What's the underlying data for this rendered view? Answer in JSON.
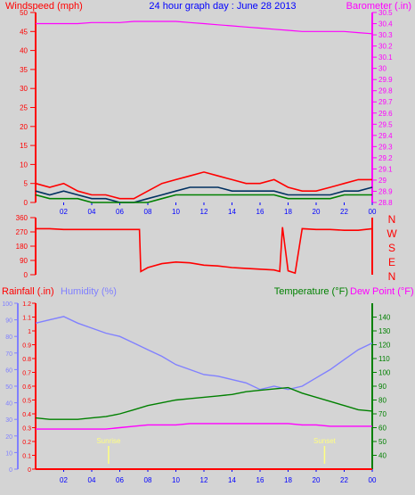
{
  "title": "24 hour graph day : June 28 2013",
  "colors": {
    "bg": "#d4d4d4",
    "wind": "#ff0000",
    "gust_dark": "#003060",
    "avg": "#008000",
    "baro": "#ff00ff",
    "humidity": "#8080ff",
    "temperature": "#008000",
    "dewpoint": "#ff00ff",
    "rain": "#ff0000",
    "sun": "#ffff80"
  },
  "chart_data": [
    {
      "type": "line",
      "panel": "wind-barometer",
      "left_label": "Windspeed (mph)",
      "right_label": "Barometer (.in)",
      "x_ticks": [
        "02",
        "04",
        "06",
        "08",
        "10",
        "12",
        "14",
        "16",
        "18",
        "20",
        "22",
        "00"
      ],
      "y_left": {
        "min": 0,
        "max": 50,
        "ticks": [
          "0",
          "5",
          "10",
          "15",
          "20",
          "25",
          "30",
          "35",
          "40",
          "45",
          "50"
        ]
      },
      "y_right": {
        "min": 28.8,
        "max": 30.5,
        "ticks": [
          "28.8",
          "28.9",
          "29",
          "29.1",
          "29.2",
          "29.3",
          "29.4",
          "29.5",
          "29.6",
          "29.7",
          "29.8",
          "29.9",
          "30",
          "30.1",
          "30.2",
          "30.3",
          "30.4",
          "30.5"
        ]
      },
      "x": [
        0,
        1,
        2,
        3,
        4,
        5,
        6,
        7,
        8,
        9,
        10,
        11,
        12,
        13,
        14,
        15,
        16,
        17,
        18,
        19,
        20,
        21,
        22,
        23,
        24
      ],
      "series": [
        {
          "key": "gust",
          "values": [
            5,
            4,
            5,
            3,
            2,
            2,
            1,
            1,
            3,
            5,
            6,
            7,
            8,
            7,
            6,
            5,
            5,
            6,
            4,
            3,
            3,
            4,
            5,
            6,
            6
          ]
        },
        {
          "key": "wind",
          "values": [
            3,
            2,
            3,
            2,
            1,
            1,
            0,
            0,
            1,
            2,
            3,
            4,
            4,
            4,
            3,
            3,
            3,
            3,
            2,
            2,
            2,
            2,
            3,
            3,
            4
          ]
        },
        {
          "key": "avg",
          "values": [
            2,
            1,
            1,
            1,
            0,
            0,
            0,
            0,
            0,
            1,
            2,
            2,
            2,
            2,
            2,
            2,
            2,
            2,
            1,
            1,
            1,
            1,
            2,
            2,
            2
          ]
        },
        {
          "key": "barometer",
          "values": [
            30.4,
            30.4,
            30.4,
            30.4,
            30.41,
            30.41,
            30.41,
            30.42,
            30.42,
            30.42,
            30.42,
            30.41,
            30.4,
            30.39,
            30.38,
            30.37,
            30.36,
            30.35,
            30.34,
            30.33,
            30.33,
            30.33,
            30.33,
            30.32,
            30.31
          ]
        }
      ]
    },
    {
      "type": "line",
      "panel": "wind-direction",
      "y": {
        "min": 0,
        "max": 360,
        "ticks": [
          "0",
          "90",
          "180",
          "270",
          "360"
        ]
      },
      "compass": [
        "N",
        "W",
        "S",
        "E",
        "N"
      ],
      "x": [
        0,
        1,
        2,
        3,
        4,
        5,
        6,
        7,
        7.4,
        7.5,
        8,
        9,
        10,
        11,
        12,
        13,
        14,
        15,
        16,
        17,
        17.4,
        17.6,
        18,
        18.5,
        19,
        20,
        21,
        22,
        23,
        24
      ],
      "series": [
        {
          "key": "direction",
          "values": [
            290,
            290,
            285,
            285,
            285,
            285,
            285,
            285,
            285,
            20,
            45,
            70,
            80,
            75,
            60,
            55,
            45,
            40,
            35,
            30,
            20,
            300,
            25,
            10,
            290,
            285,
            285,
            280,
            280,
            290
          ]
        }
      ]
    },
    {
      "type": "line",
      "panel": "rain-humidity-temp",
      "left_labels": [
        "Rainfall (.in)",
        "Humidity (%)"
      ],
      "right_labels": [
        "Temperature (°F)",
        "Dew Point (°F)"
      ],
      "x_ticks": [
        "02",
        "04",
        "06",
        "08",
        "10",
        "12",
        "14",
        "16",
        "18",
        "20",
        "22",
        "00"
      ],
      "rain_axis": {
        "min": 0,
        "max": 1.2,
        "ticks": [
          "0",
          "0.1",
          "0.2",
          "0.3",
          "0.4",
          "0.5",
          "0.6",
          "0.7",
          "0.8",
          "0.9",
          "1",
          "1.1",
          "1.2"
        ]
      },
      "humidity_axis": {
        "min": 0,
        "max": 100,
        "ticks": [
          "0",
          "10",
          "20",
          "30",
          "40",
          "50",
          "60",
          "70",
          "80",
          "90",
          "100"
        ]
      },
      "temp_axis": {
        "min": 30,
        "max": 150,
        "ticks": [
          "40",
          "50",
          "60",
          "70",
          "80",
          "90",
          "100",
          "110",
          "120",
          "130",
          "140"
        ]
      },
      "x": [
        0,
        1,
        2,
        3,
        4,
        5,
        6,
        7,
        8,
        9,
        10,
        11,
        12,
        13,
        14,
        15,
        16,
        17,
        18,
        19,
        20,
        21,
        22,
        23,
        24
      ],
      "series": [
        {
          "key": "humidity",
          "values": [
            88,
            90,
            92,
            88,
            85,
            82,
            80,
            76,
            72,
            68,
            63,
            60,
            57,
            56,
            54,
            52,
            48,
            50,
            48,
            50,
            55,
            60,
            66,
            72,
            76
          ]
        },
        {
          "key": "temperature",
          "values": [
            67,
            66,
            66,
            66,
            67,
            68,
            70,
            73,
            76,
            78,
            80,
            81,
            82,
            83,
            84,
            86,
            87,
            88,
            89,
            85,
            82,
            79,
            76,
            73,
            72
          ]
        },
        {
          "key": "dewpoint",
          "values": [
            59,
            59,
            59,
            59,
            59,
            59,
            60,
            61,
            62,
            62,
            62,
            63,
            63,
            63,
            63,
            63,
            63,
            63,
            63,
            62,
            62,
            61,
            61,
            61,
            61
          ]
        },
        {
          "key": "rainfall",
          "values": [
            0,
            0,
            0,
            0,
            0,
            0,
            0,
            0,
            0,
            0,
            0,
            0,
            0,
            0,
            0,
            0,
            0,
            0,
            0,
            0,
            0,
            0,
            0,
            0,
            0
          ]
        }
      ],
      "annotations": [
        {
          "label": "Sunrise",
          "x": 5.2
        },
        {
          "label": "Sunset",
          "x": 20.6
        }
      ]
    }
  ]
}
